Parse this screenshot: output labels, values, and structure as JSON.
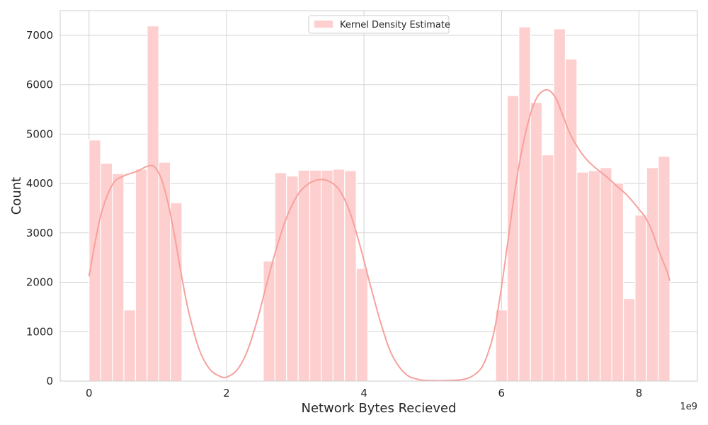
{
  "chart_data": {
    "type": "bar",
    "xlabel": "Network Bytes Recieved",
    "ylabel": "Count",
    "x_scale_label": "1e9",
    "xlim": [
      -0.42,
      8.85
    ],
    "ylim": [
      0,
      7500
    ],
    "xticks": [
      0,
      2,
      4,
      6,
      8
    ],
    "xtick_labels": [
      "0",
      "2",
      "4",
      "6",
      "8"
    ],
    "yticks": [
      0,
      1000,
      2000,
      3000,
      4000,
      5000,
      6000,
      7000
    ],
    "ytick_labels": [
      "0",
      "1000",
      "2000",
      "3000",
      "4000",
      "5000",
      "6000",
      "7000"
    ],
    "grid": true,
    "legend": {
      "position": "top-center",
      "entries": [
        "Kernel Density Estimate"
      ]
    },
    "bin_width": 0.169,
    "bins": [
      {
        "x": 0.0,
        "count": 4880
      },
      {
        "x": 0.169,
        "count": 4410
      },
      {
        "x": 0.338,
        "count": 4200
      },
      {
        "x": 0.507,
        "count": 1440
      },
      {
        "x": 0.676,
        "count": 4290
      },
      {
        "x": 0.845,
        "count": 7190
      },
      {
        "x": 1.014,
        "count": 4430
      },
      {
        "x": 1.183,
        "count": 3610
      },
      {
        "x": 2.535,
        "count": 2430
      },
      {
        "x": 2.704,
        "count": 4220
      },
      {
        "x": 2.873,
        "count": 4150
      },
      {
        "x": 3.042,
        "count": 4270
      },
      {
        "x": 3.211,
        "count": 4270
      },
      {
        "x": 3.38,
        "count": 4270
      },
      {
        "x": 3.549,
        "count": 4290
      },
      {
        "x": 3.718,
        "count": 4260
      },
      {
        "x": 3.887,
        "count": 2280
      },
      {
        "x": 5.915,
        "count": 1440
      },
      {
        "x": 6.084,
        "count": 5780
      },
      {
        "x": 6.253,
        "count": 7170
      },
      {
        "x": 6.422,
        "count": 5640
      },
      {
        "x": 6.591,
        "count": 4580
      },
      {
        "x": 6.76,
        "count": 7130
      },
      {
        "x": 6.929,
        "count": 6520
      },
      {
        "x": 7.098,
        "count": 4230
      },
      {
        "x": 7.267,
        "count": 4260
      },
      {
        "x": 7.436,
        "count": 4320
      },
      {
        "x": 7.605,
        "count": 4010
      },
      {
        "x": 7.774,
        "count": 1670
      },
      {
        "x": 7.943,
        "count": 3360
      },
      {
        "x": 8.112,
        "count": 4320
      },
      {
        "x": 8.281,
        "count": 4550
      }
    ],
    "kde": {
      "name": "Kernel Density Estimate",
      "x": [
        0.0,
        0.1,
        0.2,
        0.35,
        0.5,
        0.7,
        0.85,
        0.95,
        1.05,
        1.15,
        1.25,
        1.35,
        1.45,
        1.6,
        1.75,
        1.9,
        2.0,
        2.15,
        2.3,
        2.45,
        2.6,
        2.75,
        2.9,
        3.05,
        3.2,
        3.35,
        3.5,
        3.65,
        3.8,
        3.95,
        4.1,
        4.25,
        4.4,
        4.6,
        4.8,
        5.0,
        5.2,
        5.4,
        5.55,
        5.7,
        5.8,
        5.9,
        6.0,
        6.1,
        6.2,
        6.3,
        6.4,
        6.5,
        6.6,
        6.7,
        6.8,
        6.9,
        7.0,
        7.1,
        7.2,
        7.3,
        7.4,
        7.5,
        7.6,
        7.7,
        7.8,
        7.9,
        8.0,
        8.1,
        8.2,
        8.3,
        8.4,
        8.45
      ],
      "y": [
        2120,
        2900,
        3500,
        4000,
        4150,
        4250,
        4350,
        4340,
        4100,
        3600,
        2900,
        2100,
        1400,
        650,
        250,
        100,
        80,
        220,
        600,
        1250,
        2050,
        2800,
        3400,
        3800,
        4000,
        4080,
        4040,
        3850,
        3400,
        2700,
        1900,
        1150,
        550,
        150,
        30,
        10,
        10,
        25,
        80,
        250,
        550,
        1050,
        1900,
        2900,
        3900,
        4700,
        5300,
        5700,
        5870,
        5880,
        5700,
        5350,
        5000,
        4750,
        4550,
        4400,
        4280,
        4170,
        4050,
        3920,
        3800,
        3650,
        3480,
        3300,
        3000,
        2600,
        2250,
        2030
      ]
    },
    "colors": {
      "bar_fill": "#fecfcf",
      "bar_edge": "#ffffff",
      "kde_line": "#f6a19d",
      "grid": "#d3d3d3",
      "axis_edge": "#cccccc"
    }
  }
}
